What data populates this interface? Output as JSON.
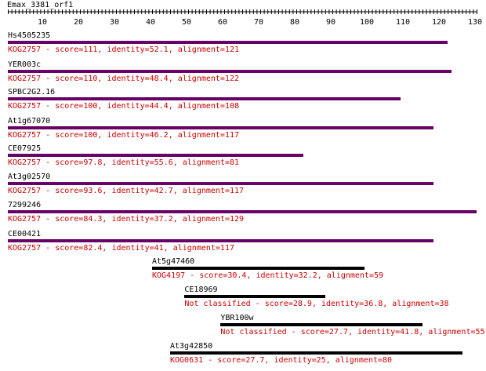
{
  "query": {
    "name": "Emax_3381_orf1",
    "length": 130
  },
  "axis": {
    "min": 0,
    "max": 130,
    "major_ticks": [
      10,
      20,
      30,
      40,
      50,
      60,
      70,
      80,
      90,
      100,
      110,
      120,
      130
    ]
  },
  "colors": {
    "purple_bar": "#660066",
    "black_bar": "#000000",
    "desc_text": "#cc0000"
  },
  "hits": [
    {
      "name": "Hs4505235",
      "start": 0,
      "end": 122,
      "color": "purple",
      "desc": "KOG2757 - score=111, identity=52.1, alignment=121"
    },
    {
      "name": "YER003c",
      "start": 0,
      "end": 123,
      "color": "purple",
      "desc": "KOG2757 - score=110, identity=48.4, alignment=122"
    },
    {
      "name": "SPBC2G2.16",
      "start": 0,
      "end": 109,
      "color": "purple",
      "desc": "KOG2757 - score=100, identity=44.4, alignment=108"
    },
    {
      "name": "At1g67070",
      "start": 0,
      "end": 118,
      "color": "purple",
      "desc": "KOG2757 - score=100, identity=46.2, alignment=117"
    },
    {
      "name": "CE07925",
      "start": 0,
      "end": 82,
      "color": "purple",
      "desc": "KOG2757 - score=97.8, identity=55.6, alignment=81"
    },
    {
      "name": "At3g02570",
      "start": 0,
      "end": 118,
      "color": "purple",
      "desc": "KOG2757 - score=93.6, identity=42.7, alignment=117"
    },
    {
      "name": "7299246",
      "start": 0,
      "end": 130,
      "color": "purple",
      "desc": "KOG2757 - score=84.3, identity=37.2, alignment=129"
    },
    {
      "name": "CE00421",
      "start": 0,
      "end": 118,
      "color": "purple",
      "desc": "KOG2757 - score=82.4, identity=41, alignment=117"
    },
    {
      "name": "At5g47460",
      "start": 40,
      "end": 99,
      "color": "black",
      "desc": "KOG4197 - score=30.4, identity=32.2, alignment=59"
    },
    {
      "name": "CE18969",
      "start": 49,
      "end": 88,
      "color": "black",
      "desc": "Not classified - score=28.9, identity=36.8, alignment=38"
    },
    {
      "name": "YBR100w",
      "start": 59,
      "end": 115,
      "color": "black",
      "desc": "Not classified - score=27.7, identity=41.8, alignment=55"
    },
    {
      "name": "At3g42850",
      "start": 45,
      "end": 126,
      "color": "black",
      "desc": "KOG0631 - score=27.7, identity=25, alignment=80"
    }
  ]
}
